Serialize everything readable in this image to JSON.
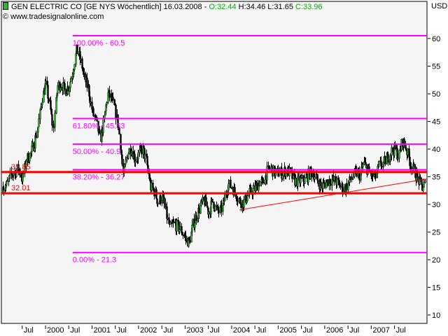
{
  "header": {
    "title": "GEN ELECTRIC CO [GE NYS  Wöchentlich] 16.03.2008 - ",
    "open": "O:32.44",
    "high": "H:34.46",
    "low": "L:31.65",
    "close": "C:33.96",
    "copyright": "© www.tradesignalonline.com",
    "currency": "USD",
    "icon": "candlestick-icon"
  },
  "colors": {
    "background": "#f5f5f5",
    "up_candle": "#2db52d",
    "down_candle": "#000000",
    "fibonacci": "#ff00ff",
    "support_resistance": "#ff0000",
    "ohlc_green": "#00b000"
  },
  "chart_data": {
    "type": "candlestick",
    "interval": "weekly",
    "ylim": [
      10,
      60
    ],
    "yticks": [
      10,
      15,
      20,
      25,
      30,
      35,
      40,
      45,
      50,
      55,
      60
    ],
    "ytick_labels": [
      "10",
      "15",
      "20",
      "25",
      "30",
      "35",
      "40",
      "45",
      "50",
      "55",
      "60"
    ],
    "ylabel": "USD",
    "grid": false,
    "xticks": [
      {
        "label": "Jul",
        "date": "1999-07"
      },
      {
        "label": "2000",
        "date": "2000-01"
      },
      {
        "label": "Jul",
        "date": "2000-07"
      },
      {
        "label": "2001",
        "date": "2001-01"
      },
      {
        "label": "Jul",
        "date": "2001-07"
      },
      {
        "label": "2002",
        "date": "2002-01"
      },
      {
        "label": "Jul",
        "date": "2002-07"
      },
      {
        "label": "2003",
        "date": "2003-01"
      },
      {
        "label": "Jul",
        "date": "2003-07"
      },
      {
        "label": "2004",
        "date": "2004-01"
      },
      {
        "label": "Jul",
        "date": "2004-07"
      },
      {
        "label": "2005",
        "date": "2005-01"
      },
      {
        "label": "Jul",
        "date": "2005-07"
      },
      {
        "label": "2006",
        "date": "2006-01"
      },
      {
        "label": "Jul",
        "date": "2006-07"
      },
      {
        "label": "2007",
        "date": "2007-01"
      },
      {
        "label": "Jul",
        "date": "2007-07"
      }
    ],
    "start_date": "1999-02",
    "monthly_close_approx": [
      33.2,
      33.5,
      35.3,
      35.8,
      36.6,
      34.4,
      38.2,
      39,
      41,
      44,
      49,
      51.8,
      48,
      43.3,
      51.4,
      51.8,
      50.5,
      51.4,
      54.3,
      58,
      56,
      52.7,
      50.9,
      46.7,
      45,
      41.6,
      45,
      50,
      49,
      46.7,
      42.9,
      35,
      39,
      40.4,
      38.2,
      39.1,
      40,
      37.8,
      33.2,
      32.4,
      30.3,
      31.5,
      28.6,
      25.6,
      26.5,
      26,
      25.2,
      23.9,
      23,
      26.5,
      28.1,
      29.9,
      30.6,
      28.6,
      30.6,
      29,
      28.6,
      30.6,
      33.7,
      33.2,
      31.9,
      30.6,
      30.3,
      31.5,
      32.4,
      32.8,
      34.1,
      33.7,
      35.7,
      36.6,
      35.7,
      35.7,
      35.7,
      36.2,
      35.7,
      34.4,
      34.1,
      34.4,
      34.4,
      35.7,
      35.7,
      34.4,
      33.2,
      33.7,
      34.4,
      34.4,
      34.1,
      33.2,
      32.8,
      33.7,
      34.9,
      35.7,
      35.3,
      37.4,
      36.2,
      35.3,
      34.9,
      37,
      37.4,
      38.2,
      39.5,
      40,
      38.7,
      41.5,
      40,
      37.5,
      36,
      34.5,
      33,
      33.96
    ],
    "fibonacci": {
      "start_date": "2000-08",
      "levels": [
        {
          "label": "100.00% - 60.5",
          "value": 60.5
        },
        {
          "label": "61.80% - 45.53",
          "value": 45.53
        },
        {
          "label": "50.00% - 40.9",
          "value": 40.9
        },
        {
          "label": "38.20% - 36.27",
          "value": 36.27
        },
        {
          "label": "0.00% - 21.3",
          "value": 21.3
        }
      ]
    },
    "horizontal_lines": [
      {
        "label": "35.85",
        "value": 35.85
      },
      {
        "label": "32.01",
        "value": 32.01
      }
    ],
    "trendline": {
      "from": {
        "date": "2004-03",
        "value": 29.0
      },
      "to": {
        "date": "2008-03",
        "value": 34.6
      }
    }
  }
}
